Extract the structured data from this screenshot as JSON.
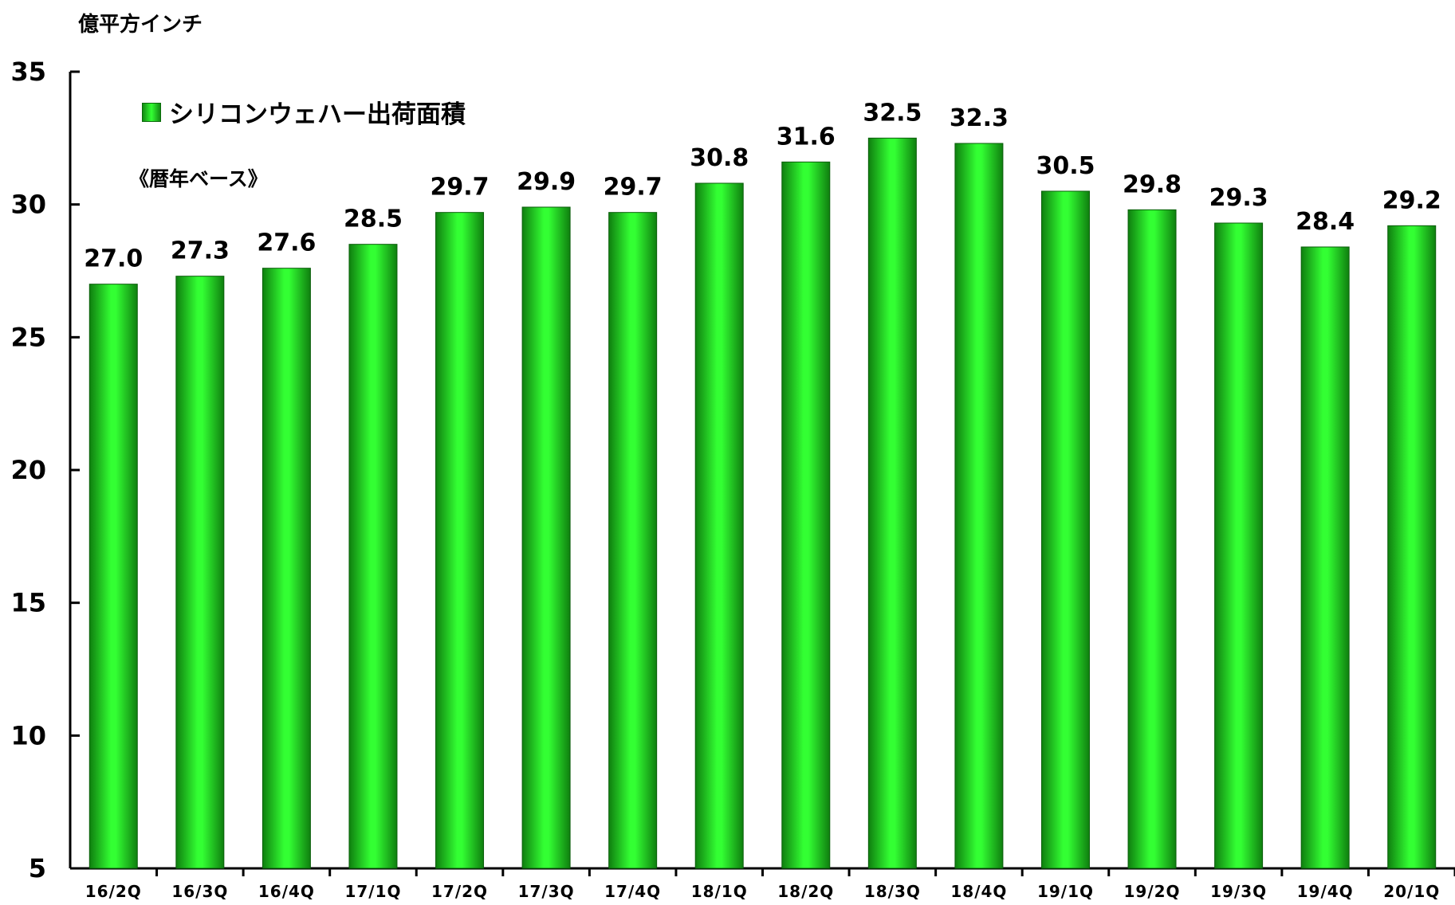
{
  "chart_data": {
    "type": "bar",
    "title": "",
    "unit_label": "億平方インチ",
    "basis_note": "《暦年ベース》",
    "ylabel": "",
    "xlabel": "",
    "ylim": [
      5,
      35
    ],
    "yticks": [
      5,
      10,
      15,
      20,
      25,
      30,
      35
    ],
    "grid": false,
    "legend_position": "top-left",
    "categories": [
      "16/2Q",
      "16/3Q",
      "16/4Q",
      "17/1Q",
      "17/2Q",
      "17/3Q",
      "17/4Q",
      "18/1Q",
      "18/2Q",
      "18/3Q",
      "18/4Q",
      "19/1Q",
      "19/2Q",
      "19/3Q",
      "19/4Q",
      "20/1Q"
    ],
    "series": [
      {
        "name": "シリコンウェハー出荷面積",
        "values": [
          27.0,
          27.3,
          27.6,
          28.5,
          29.7,
          29.9,
          29.7,
          30.8,
          31.6,
          32.5,
          32.3,
          30.5,
          29.8,
          29.3,
          28.4,
          29.2
        ],
        "value_labels": [
          "27.0",
          "27.3",
          "27.6",
          "28.5",
          "29.7",
          "29.9",
          "29.7",
          "30.8",
          "31.6",
          "32.5",
          "32.3",
          "30.5",
          "29.8",
          "29.3",
          "28.4",
          "29.2"
        ],
        "color": "#22dd22"
      }
    ]
  }
}
